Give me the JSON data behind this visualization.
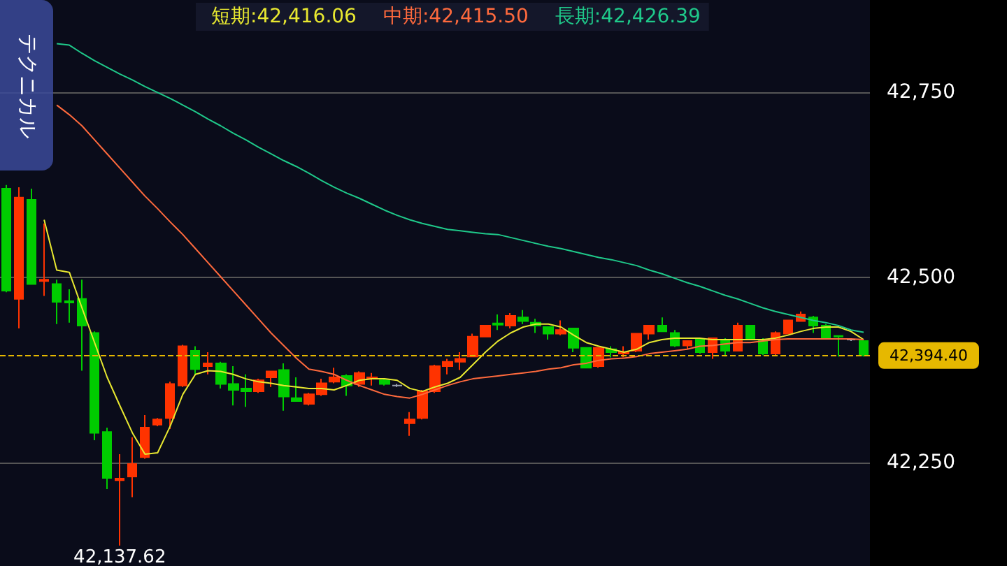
{
  "chart_data": {
    "type": "candlestick",
    "categories": [
      null,
      null,
      null,
      null,
      null,
      null,
      null,
      null,
      null,
      null,
      null,
      null,
      null,
      null,
      null,
      null,
      null,
      null,
      null,
      null,
      null,
      null,
      null,
      null,
      null,
      null,
      null,
      null,
      null,
      null,
      null,
      null,
      null,
      null,
      null,
      null,
      null,
      null,
      null,
      null,
      null,
      null,
      null,
      null,
      null,
      null,
      null,
      null,
      null,
      null,
      null,
      null,
      null,
      null,
      null,
      null,
      null,
      null,
      null,
      null,
      null,
      null,
      null,
      null,
      null,
      null,
      null,
      null,
      null
    ],
    "ohlc": [
      [
        42620,
        42625,
        42480,
        42482
      ],
      [
        42471,
        42622,
        42431,
        42608
      ],
      [
        42605,
        42620,
        42491,
        42491
      ],
      [
        42495,
        42573,
        42475,
        42497
      ],
      [
        42491,
        42497,
        42437,
        42467
      ],
      [
        42468,
        42484,
        42439,
        42466
      ],
      [
        42471,
        42497,
        42374,
        42435
      ],
      [
        42425,
        42427,
        42280,
        42290
      ],
      [
        42291,
        42297,
        42214,
        42229
      ],
      [
        42226,
        42261,
        42137.62,
        42228
      ],
      [
        42231,
        42284,
        42203,
        42248
      ],
      [
        42257,
        42314,
        42255,
        42297
      ],
      [
        42301,
        42310,
        42299,
        42308
      ],
      [
        42310,
        42359,
        42295,
        42356
      ],
      [
        42354,
        42409,
        42352,
        42407
      ],
      [
        42401,
        42407,
        42369,
        42376
      ],
      [
        42380,
        42399,
        42369,
        42384
      ],
      [
        42384,
        42386,
        42350,
        42356
      ],
      [
        42356,
        42380,
        42327,
        42348
      ],
      [
        42350,
        42369,
        42325,
        42346
      ],
      [
        42346,
        42363,
        42344,
        42361
      ],
      [
        42365,
        42373,
        42352,
        42373
      ],
      [
        42375,
        42384,
        42320,
        42339
      ],
      [
        42337,
        42365,
        42333,
        42333
      ],
      [
        42329,
        42344,
        42327,
        42342
      ],
      [
        42342,
        42363,
        42340,
        42357
      ],
      [
        42359,
        42378,
        42357,
        42365
      ],
      [
        42367,
        42369,
        42340,
        42354
      ],
      [
        42356,
        42373,
        42352,
        42371
      ],
      [
        42363,
        42371,
        42354,
        42365
      ],
      [
        42361,
        42363,
        42354,
        42356
      ],
      [
        42354,
        42356,
        42352,
        42354
      ],
      [
        42303,
        42318,
        42286,
        42308
      ],
      [
        42310,
        42348,
        42308,
        42346
      ],
      [
        42346,
        42382,
        42344,
        42380
      ],
      [
        42380,
        42390,
        42369,
        42386
      ],
      [
        42386,
        42399,
        42375,
        42390
      ],
      [
        42393,
        42424,
        42393,
        42420
      ],
      [
        42420,
        42435,
        42420,
        42435
      ],
      [
        42438,
        42450,
        42429,
        42436
      ],
      [
        42435,
        42452,
        42431,
        42448
      ],
      [
        42446,
        42456,
        42437,
        42441
      ],
      [
        42439,
        42444,
        42425,
        42435
      ],
      [
        42433,
        42433,
        42416,
        42424
      ],
      [
        42424,
        42442,
        42422,
        42429
      ],
      [
        42431,
        42431,
        42399,
        42405
      ],
      [
        42405,
        42405,
        42378,
        42378
      ],
      [
        42380,
        42405,
        42378,
        42405
      ],
      [
        42403,
        42407,
        42392,
        42399
      ],
      [
        42397,
        42407,
        42392,
        42399
      ],
      [
        42401,
        42424,
        42399,
        42424
      ],
      [
        42424,
        42435,
        42416,
        42435
      ],
      [
        42435,
        42446,
        42427,
        42427
      ],
      [
        42425,
        42429,
        42406,
        42408
      ],
      [
        42408,
        42414,
        42403,
        42414
      ],
      [
        42416,
        42416,
        42397,
        42399
      ],
      [
        42399,
        42418,
        42390,
        42418
      ],
      [
        42414,
        42418,
        42393,
        42401
      ],
      [
        42401,
        42439,
        42401,
        42435
      ],
      [
        42435,
        42435,
        42416,
        42416
      ],
      [
        42416,
        42418,
        42395,
        42397
      ],
      [
        42397,
        42427,
        42395,
        42425
      ],
      [
        42424,
        42442,
        42424,
        42442
      ],
      [
        42441,
        42454,
        42441,
        42450
      ],
      [
        42446,
        42448,
        42425,
        42435
      ],
      [
        42435,
        42437,
        42418,
        42418
      ],
      [
        42421,
        42422,
        42393,
        42420
      ],
      [
        42416,
        42418,
        42414,
        42416
      ],
      [
        42414,
        42414,
        42393,
        42394.4
      ]
    ],
    "colors": [
      "#00cc00",
      "#ff3300",
      "#00cc00",
      "#ff3300",
      "#00cc00",
      "#00cc00",
      "#00cc00",
      "#00cc00",
      "#00cc00",
      "#ff3300",
      "#ff3300",
      "#ff3300",
      "#ff3300",
      "#ff3300",
      "#ff3300",
      "#00cc00",
      "#ff3300",
      "#00cc00",
      "#00cc00",
      "#00cc00",
      "#ff3300",
      "#ff3300",
      "#00cc00",
      "#00cc00",
      "#ff3300",
      "#ff3300",
      "#ff3300",
      "#00cc00",
      "#ff3300",
      "#ff3300",
      "#00cc00",
      "#9aa0b0",
      "#ff3300",
      "#ff3300",
      "#ff3300",
      "#ff3300",
      "#ff3300",
      "#ff3300",
      "#ff3300",
      "#00cc00",
      "#ff3300",
      "#00cc00",
      "#00cc00",
      "#00cc00",
      "#ff3300",
      "#00cc00",
      "#00cc00",
      "#ff3300",
      "#00cc00",
      "#ff3300",
      "#ff3300",
      "#ff3300",
      "#00cc00",
      "#00cc00",
      "#ff3300",
      "#00cc00",
      "#ff3300",
      "#00cc00",
      "#ff3300",
      "#00cc00",
      "#00cc00",
      "#ff3300",
      "#ff3300",
      "#ff3300",
      "#00cc00",
      "#00cc00",
      "#00cc00",
      "#9aa0b0",
      "#00cc00"
    ],
    "series": [
      {
        "name": "短期:42,416.06",
        "type": "line",
        "color": "#e8e830",
        "values": [
          null,
          null,
          null,
          42578,
          42510,
          42507,
          42459,
          42412,
          42365,
          42327,
          42290,
          42261,
          42263,
          42299,
          42342,
          42369,
          42374,
          42373,
          42369,
          42363,
          42359,
          42357,
          42354,
          42352,
          42350,
          42350,
          42348,
          42354,
          42361,
          42363,
          42363,
          42361,
          42350,
          42346,
          42352,
          42357,
          42365,
          42382,
          42399,
          42414,
          42425,
          42433,
          42437,
          42437,
          42433,
          42422,
          42412,
          42407,
          42403,
          42399,
          42403,
          42412,
          42416,
          42418,
          42418,
          42418,
          42416,
          42416,
          42416,
          42416,
          42416,
          42418,
          42422,
          42427,
          42431,
          42433,
          42433,
          42427,
          42416
        ]
      },
      {
        "name": "中期:42,415.50",
        "type": "line",
        "color": "#ff6a3d",
        "values": [
          null,
          null,
          null,
          null,
          42733,
          42720,
          42705,
          42686,
          42667,
          42648,
          42629,
          42610,
          42593,
          42575,
          42558,
          42539,
          42520,
          42501,
          42482,
          42463,
          42444,
          42425,
          42408,
          42391,
          42376,
          42373,
          42369,
          42361,
          42354,
          42348,
          42342,
          42339,
          42337,
          42342,
          42348,
          42354,
          42359,
          42363,
          42365,
          42367,
          42369,
          42371,
          42373,
          42376,
          42378,
          42382,
          42384,
          42388,
          42390,
          42391,
          42393,
          42397,
          42399,
          42401,
          42403,
          42407,
          42408,
          42410,
          42412,
          42412,
          42414,
          42416,
          42417,
          42417,
          42417,
          42417,
          42417,
          42417,
          42416
        ]
      },
      {
        "name": "長期:42,426.39",
        "type": "line",
        "color": "#1fc98a",
        "values": [
          null,
          null,
          null,
          null,
          42816,
          42814,
          42803,
          42793,
          42784,
          42775,
          42767,
          42758,
          42750,
          42742,
          42733,
          42724,
          42714,
          42705,
          42695,
          42686,
          42676,
          42667,
          42658,
          42650,
          42641,
          42631,
          42622,
          42614,
          42607,
          42599,
          42591,
          42584,
          42578,
          42573,
          42569,
          42565,
          42563,
          42561,
          42559,
          42558,
          42554,
          42550,
          42546,
          42542,
          42539,
          42535,
          42531,
          42527,
          42524,
          42520,
          42516,
          42510,
          42505,
          42499,
          42493,
          42488,
          42482,
          42476,
          42471,
          42465,
          42459,
          42454,
          42450,
          42446,
          42442,
          42439,
          42435,
          42429,
          42426
        ]
      }
    ],
    "ylim": [
      42110,
      42875
    ],
    "yticks": [
      {
        "value": 42250,
        "label": "42,250"
      },
      {
        "value": 42500,
        "label": "42,500"
      },
      {
        "value": 42750,
        "label": "42,750"
      }
    ],
    "grid": "y",
    "tick_labels": "y",
    "legend": "top",
    "marker": "none",
    "line_style": "solid",
    "ref_lines": [
      {
        "axis": "y",
        "value": 42394.4,
        "label": "42,394.40",
        "color": "#e6b800",
        "line_style": "dashed"
      }
    ],
    "annotations": [
      "テクニカル",
      {
        "text": "42,137.62",
        "y": 42137.62
      }
    ]
  }
}
